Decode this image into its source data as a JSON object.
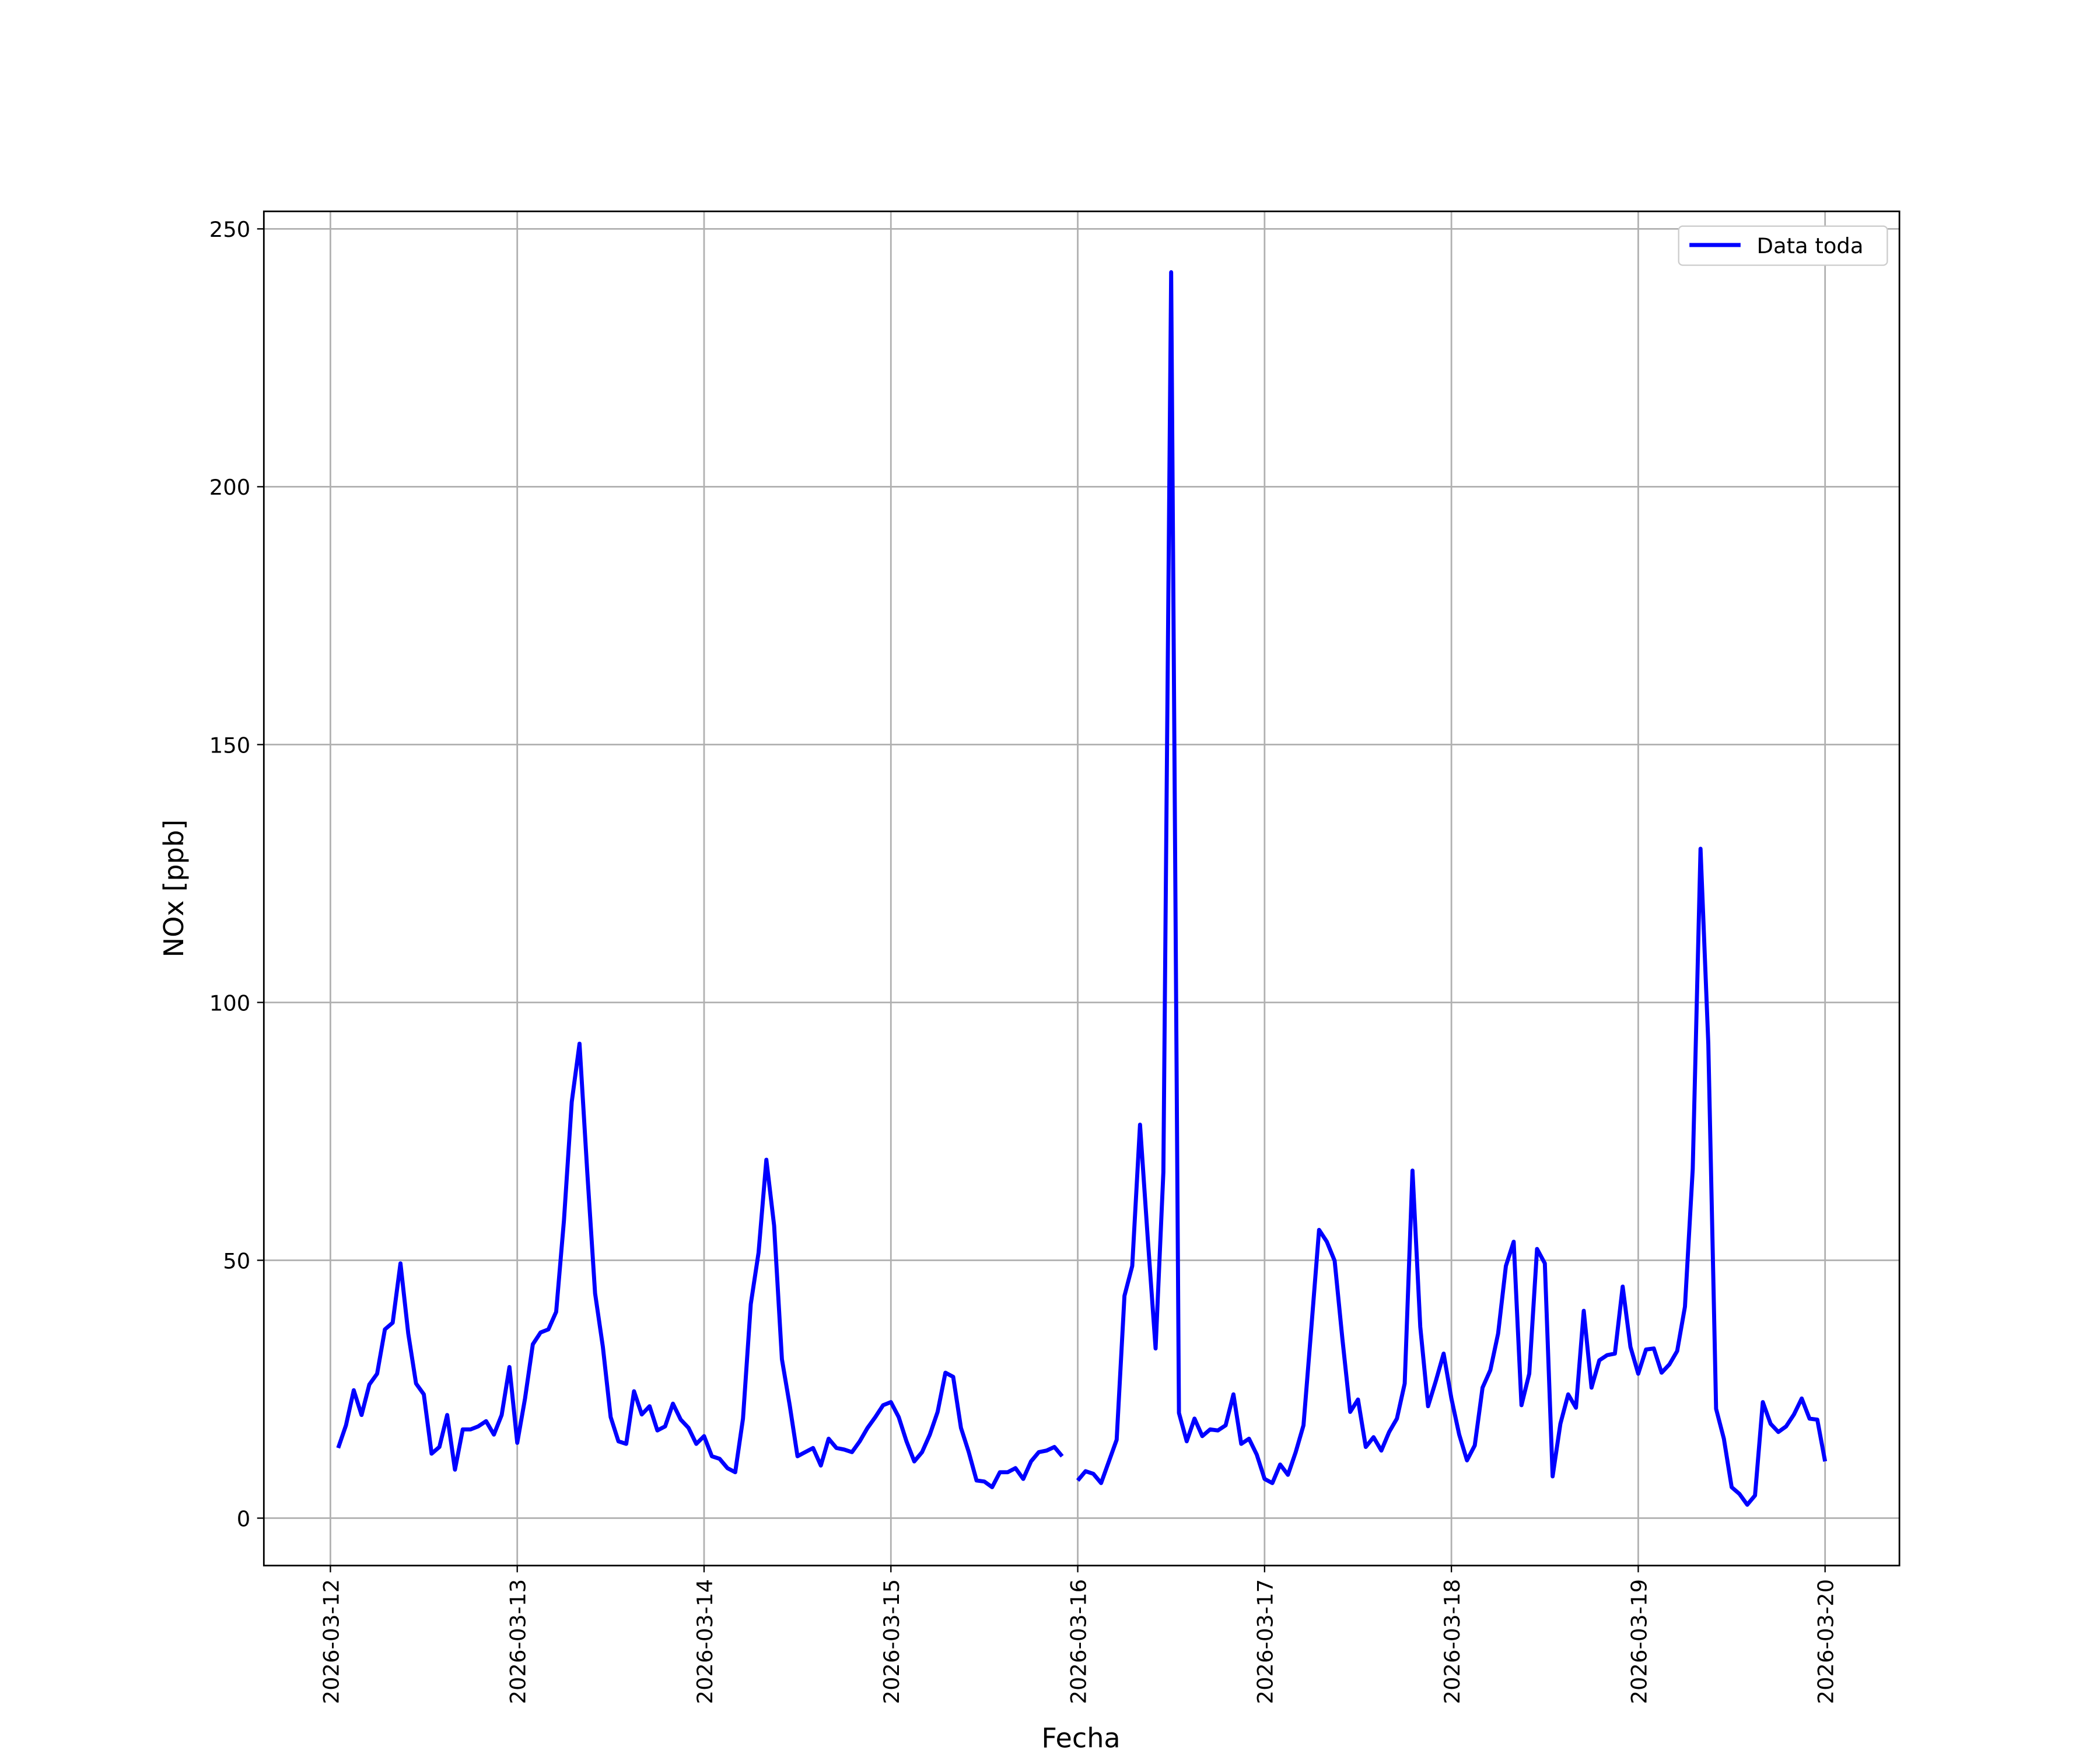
{
  "chart_data": {
    "type": "line",
    "xlabel": "Fecha",
    "ylabel": "NOx [ppb]",
    "x": [
      "2026-03-12 01:00",
      "2026-03-12 02:00",
      "2026-03-12 03:00",
      "2026-03-12 04:00",
      "2026-03-12 05:00",
      "2026-03-12 06:00",
      "2026-03-12 07:00",
      "2026-03-12 08:00",
      "2026-03-12 09:00",
      "2026-03-12 10:00",
      "2026-03-12 11:00",
      "2026-03-12 12:00",
      "2026-03-12 13:00",
      "2026-03-12 14:00",
      "2026-03-12 15:00",
      "2026-03-12 16:00",
      "2026-03-12 17:00",
      "2026-03-12 18:00",
      "2026-03-12 19:00",
      "2026-03-12 20:00",
      "2026-03-12 21:00",
      "2026-03-12 22:00",
      "2026-03-12 23:00",
      "2026-03-13 00:00",
      "2026-03-13 01:00",
      "2026-03-13 02:00",
      "2026-03-13 03:00",
      "2026-03-13 04:00",
      "2026-03-13 05:00",
      "2026-03-13 06:00",
      "2026-03-13 07:00",
      "2026-03-13 08:00",
      "2026-03-13 09:00",
      "2026-03-13 10:00",
      "2026-03-13 11:00",
      "2026-03-13 12:00",
      "2026-03-13 13:00",
      "2026-03-13 14:00",
      "2026-03-13 15:00",
      "2026-03-13 16:00",
      "2026-03-13 17:00",
      "2026-03-13 18:00",
      "2026-03-13 19:00",
      "2026-03-13 20:00",
      "2026-03-13 21:00",
      "2026-03-13 22:00",
      "2026-03-13 23:00",
      "2026-03-14 00:00",
      "2026-03-14 01:00",
      "2026-03-14 02:00",
      "2026-03-14 03:00",
      "2026-03-14 04:00",
      "2026-03-14 05:00",
      "2026-03-14 06:00",
      "2026-03-14 07:00",
      "2026-03-14 08:00",
      "2026-03-14 09:00",
      "2026-03-14 10:00",
      "2026-03-14 11:00",
      "2026-03-14 12:00",
      "2026-03-14 13:00",
      "2026-03-14 14:00",
      "2026-03-14 15:00",
      "2026-03-14 16:00",
      "2026-03-14 17:00",
      "2026-03-14 18:00",
      "2026-03-14 19:00",
      "2026-03-14 20:00",
      "2026-03-14 21:00",
      "2026-03-14 22:00",
      "2026-03-14 23:00",
      "2026-03-15 00:00",
      "2026-03-15 01:00",
      "2026-03-15 02:00",
      "2026-03-15 03:00",
      "2026-03-15 04:00",
      "2026-03-15 05:00",
      "2026-03-15 06:00",
      "2026-03-15 07:00",
      "2026-03-15 08:00",
      "2026-03-15 09:00",
      "2026-03-15 10:00",
      "2026-03-15 11:00",
      "2026-03-15 12:00",
      "2026-03-15 13:00",
      "2026-03-15 14:00",
      "2026-03-15 15:00",
      "2026-03-15 16:00",
      "2026-03-15 17:00",
      "2026-03-15 18:00",
      "2026-03-15 19:00",
      "2026-03-15 20:00",
      "2026-03-15 21:00",
      "2026-03-15 22:00",
      "2026-03-15 23:00",
      "2026-03-16 00:00",
      "2026-03-16 01:00",
      "2026-03-16 02:00",
      "2026-03-16 03:00",
      "2026-03-16 04:00",
      "2026-03-16 05:00",
      "2026-03-16 06:00",
      "2026-03-16 07:00",
      "2026-03-16 08:00",
      "2026-03-16 09:00",
      "2026-03-16 10:00",
      "2026-03-16 11:00",
      "2026-03-16 12:00",
      "2026-03-16 13:00",
      "2026-03-16 14:00",
      "2026-03-16 15:00",
      "2026-03-16 16:00",
      "2026-03-16 17:00",
      "2026-03-16 18:00",
      "2026-03-16 19:00",
      "2026-03-16 20:00",
      "2026-03-16 21:00",
      "2026-03-16 22:00",
      "2026-03-16 23:00",
      "2026-03-17 00:00",
      "2026-03-17 01:00",
      "2026-03-17 02:00",
      "2026-03-17 03:00",
      "2026-03-17 04:00",
      "2026-03-17 05:00",
      "2026-03-17 06:00",
      "2026-03-17 07:00",
      "2026-03-17 08:00",
      "2026-03-17 09:00",
      "2026-03-17 10:00",
      "2026-03-17 11:00",
      "2026-03-17 12:00",
      "2026-03-17 13:00",
      "2026-03-17 14:00",
      "2026-03-17 15:00",
      "2026-03-17 16:00",
      "2026-03-17 17:00",
      "2026-03-17 18:00",
      "2026-03-17 19:00",
      "2026-03-17 20:00",
      "2026-03-17 21:00",
      "2026-03-17 22:00",
      "2026-03-17 23:00",
      "2026-03-18 00:00",
      "2026-03-18 01:00",
      "2026-03-18 02:00",
      "2026-03-18 03:00",
      "2026-03-18 04:00",
      "2026-03-18 05:00",
      "2026-03-18 06:00",
      "2026-03-18 07:00",
      "2026-03-18 08:00",
      "2026-03-18 09:00",
      "2026-03-18 10:00",
      "2026-03-18 11:00",
      "2026-03-18 12:00",
      "2026-03-18 13:00",
      "2026-03-18 14:00",
      "2026-03-18 15:00",
      "2026-03-18 16:00",
      "2026-03-18 17:00",
      "2026-03-18 18:00",
      "2026-03-18 19:00",
      "2026-03-18 20:00",
      "2026-03-18 21:00",
      "2026-03-18 22:00",
      "2026-03-18 23:00",
      "2026-03-19 00:00",
      "2026-03-19 01:00",
      "2026-03-19 02:00",
      "2026-03-19 03:00",
      "2026-03-19 04:00",
      "2026-03-19 05:00",
      "2026-03-19 06:00",
      "2026-03-19 07:00",
      "2026-03-19 08:00",
      "2026-03-19 09:00",
      "2026-03-19 10:00",
      "2026-03-19 11:00",
      "2026-03-19 12:00",
      "2026-03-19 13:00",
      "2026-03-19 14:00",
      "2026-03-19 15:00",
      "2026-03-19 16:00",
      "2026-03-19 17:00",
      "2026-03-19 18:00",
      "2026-03-19 19:00",
      "2026-03-19 20:00",
      "2026-03-19 21:00",
      "2026-03-19 22:00",
      "2026-03-19 23:00",
      "2026-03-20 00:00"
    ],
    "series": [
      {
        "name": "Data toda",
        "color": "#0000ff",
        "values": [
          13.6,
          18,
          24.8,
          20,
          25.9,
          28,
          36.6,
          37.9,
          49.4,
          35.8,
          26.1,
          24,
          12.5,
          13.8,
          20,
          9.4,
          17.2,
          17.2,
          17.8,
          18.8,
          16.2,
          20,
          29.3,
          14.6,
          23.2,
          33.7,
          36,
          36.6,
          40,
          57.7,
          80.7,
          92,
          67,
          43.6,
          33.2,
          19.6,
          14.9,
          14.4,
          24.6,
          20.1,
          21.7,
          17,
          17.8,
          22.2,
          19.1,
          17.5,
          14.4,
          15.9,
          12,
          11.5,
          9.7,
          8.9,
          19.3,
          41.5,
          51.5,
          69.5,
          56.7,
          30.8,
          21.9,
          12,
          12.8,
          13.6,
          10.2,
          15.4,
          13.6,
          13.3,
          12.8,
          14.9,
          17.5,
          19.6,
          21.9,
          22.5,
          19.6,
          14.9,
          11,
          12.8,
          16.2,
          20.6,
          28.2,
          27.4,
          17.5,
          12.8,
          7.3,
          7.1,
          6,
          8.9,
          8.9,
          9.7,
          7.6,
          11,
          12.8,
          13.1,
          13.8,
          12,
          null,
          7.3,
          9.1,
          8.6,
          6.8,
          11,
          15.2,
          43.1,
          48.9,
          76.3,
          54.1,
          32.9,
          67.1,
          241.6,
          20.4,
          14.9,
          19.3,
          15.9,
          17.2,
          17,
          18,
          24,
          14.4,
          15.4,
          12.3,
          7.6,
          6.8,
          10.4,
          8.4,
          12.8,
          18,
          36.8,
          55.9,
          53.6,
          49.9,
          34.7,
          20.6,
          23,
          13.8,
          15.7,
          13.1,
          16.7,
          19.3,
          26.1,
          67.4,
          37.1,
          21.7,
          26.6,
          31.9,
          23.2,
          16.2,
          11.2,
          14.1,
          25.3,
          28.7,
          35.8,
          48.9,
          53.6,
          21.9,
          28,
          52.2,
          49.4,
          8.1,
          18.3,
          24,
          21.4,
          40.2,
          25.3,
          30.6,
          31.6,
          31.9,
          44.9,
          33.2,
          28,
          32.7,
          32.9,
          28.2,
          29.8,
          32.4,
          41,
          67.7,
          129.8,
          92,
          21.2,
          15.4,
          6,
          4.7,
          2.6,
          4.4,
          22.5,
          18.3,
          16.7,
          17.8,
          20.1,
          23.2,
          19.3,
          19.1,
          11
        ]
      }
    ],
    "xlim": [
      "2026-03-11 15:27",
      "2026-03-20 09:33"
    ],
    "xticks": [
      "2026-03-12",
      "2026-03-13",
      "2026-03-14",
      "2026-03-15",
      "2026-03-16",
      "2026-03-17",
      "2026-03-18",
      "2026-03-19",
      "2026-03-20"
    ],
    "ylim": [
      -9.2,
      253.4
    ],
    "yticks": [
      0,
      50,
      100,
      150,
      200,
      250
    ],
    "grid": true,
    "legend": "upper right"
  }
}
